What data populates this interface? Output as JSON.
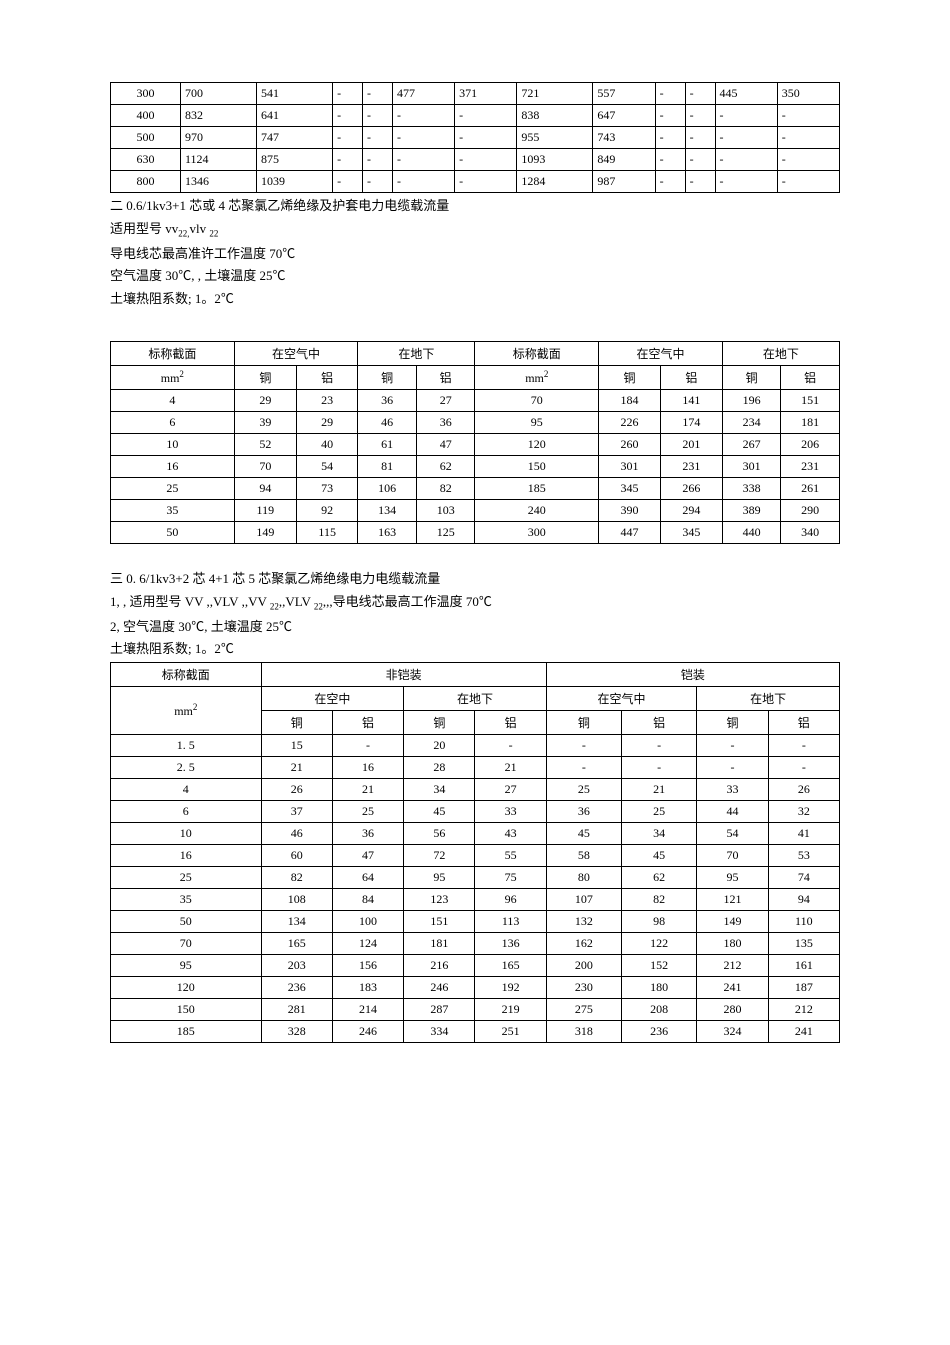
{
  "table1": {
    "rows": [
      [
        "300",
        "700",
        "541",
        "-",
        "-",
        "477",
        "371",
        "721",
        "557",
        "-",
        "-",
        "445",
        "350"
      ],
      [
        "400",
        "832",
        "641",
        "-",
        "-",
        "-",
        "-",
        "838",
        "647",
        "-",
        "-",
        "-",
        "-"
      ],
      [
        "500",
        "970",
        "747",
        "-",
        "-",
        "-",
        "-",
        "955",
        "743",
        "-",
        "-",
        "-",
        "-"
      ],
      [
        "630",
        "1124",
        "875",
        "-",
        "-",
        "-",
        "-",
        "1093",
        "849",
        "-",
        "-",
        "-",
        "-"
      ],
      [
        "800",
        "1346",
        "1039",
        "-",
        "-",
        "-",
        "-",
        "1284",
        "987",
        "-",
        "-",
        "-",
        "-"
      ]
    ],
    "col_widths": [
      "70px",
      "46px",
      "46px",
      "46px",
      "46px",
      "46px",
      "46px",
      "46px",
      "46px",
      "46px",
      "46px",
      "46px",
      "46px"
    ]
  },
  "section2": {
    "title": "二  0.6/1kv3+1 芯或  4 芯聚氯乙烯绝缘及护套电力电缆载流量",
    "line1_a": "适用型号  vv",
    "line1_sub1": "22,",
    "line1_b": "vlv ",
    "line1_sub2": "22",
    "line2": "导电线芯最高准许工作温度    70℃",
    "line3": "空气温度  30℃, ,  土壤温度  25℃",
    "line4": "土壤热阻系数;   1。2℃"
  },
  "table2": {
    "h1": [
      "标称截面",
      "在空气中",
      "在地下",
      "标称截面",
      "在空气中",
      "在地下"
    ],
    "h2_unit_a": "mm",
    "h2_sup": "2",
    "h2": [
      "铜",
      "铝",
      "铜",
      "铝",
      "",
      "铜",
      "铝",
      "铜",
      "铝"
    ],
    "rows": [
      [
        "4",
        "29",
        "23",
        "36",
        "27",
        "70",
        "184",
        "141",
        "196",
        "151"
      ],
      [
        "6",
        "39",
        "29",
        "46",
        "36",
        "95",
        "226",
        "174",
        "234",
        "181"
      ],
      [
        "10",
        "52",
        "40",
        "61",
        "47",
        "120",
        "260",
        "201",
        "267",
        "206"
      ],
      [
        "16",
        "70",
        "54",
        "81",
        "62",
        "150",
        "301",
        "231",
        "301",
        "231"
      ],
      [
        "25",
        "94",
        "73",
        "106",
        "82",
        "185",
        "345",
        "266",
        "338",
        "261"
      ],
      [
        "35",
        "119",
        "92",
        "134",
        "103",
        "240",
        "390",
        "294",
        "389",
        "290"
      ],
      [
        "50",
        "149",
        "115",
        "163",
        "125",
        "300",
        "447",
        "345",
        "440",
        "340"
      ]
    ]
  },
  "section3": {
    "title": "三  0.  6/1kv3+2 芯 4+1 芯 5 芯聚氯乙烯绝缘电力电缆载流量",
    "line1_a": "1, ,  适用型号   VV ,,VLV ,,VV ",
    "line1_sub1": "22",
    "line1_b": ",,VLV ",
    "line1_sub2": "22",
    "line1_c": ",,,导电线芯最高工作温度     70℃",
    "line2": "2,  空气温度   30℃,  土壤温度   25℃",
    "line3": "土壤热阻系数;    1。2℃"
  },
  "table3": {
    "h1": [
      "标称截面",
      "非铠装",
      "铠装"
    ],
    "h2_unit_a": "mm",
    "h2_sup": "2",
    "h2": [
      "在空中",
      "在地下",
      "在空气中",
      "在地下"
    ],
    "h3": [
      "铜",
      "铝",
      "铜",
      "铝",
      "铜",
      "铝",
      "铜",
      "铝"
    ],
    "rows": [
      [
        "1.  5",
        "15",
        "-",
        "20",
        "-",
        "-",
        "-",
        "-",
        "-"
      ],
      [
        "2.  5",
        "21",
        "16",
        "28",
        "21",
        "-",
        "-",
        "-",
        "-"
      ],
      [
        "4",
        "26",
        "21",
        "34",
        "27",
        "25",
        "21",
        "33",
        "26"
      ],
      [
        "6",
        "37",
        "25",
        "45",
        "33",
        "36",
        "25",
        "44",
        "32"
      ],
      [
        "10",
        "46",
        "36",
        "56",
        "43",
        "45",
        "34",
        "54",
        "41"
      ],
      [
        "16",
        "60",
        "47",
        "72",
        "55",
        "58",
        "45",
        "70",
        "53"
      ],
      [
        "25",
        "82",
        "64",
        "95",
        "75",
        "80",
        "62",
        "95",
        "74"
      ],
      [
        "35",
        "108",
        "84",
        "123",
        "96",
        "107",
        "82",
        "121",
        "94"
      ],
      [
        "50",
        "134",
        "100",
        "151",
        "113",
        "132",
        "98",
        "149",
        "110"
      ],
      [
        "70",
        "165",
        "124",
        "181",
        "136",
        "162",
        "122",
        "180",
        "135"
      ],
      [
        "95",
        "203",
        "156",
        "216",
        "165",
        "200",
        "152",
        "212",
        "161"
      ],
      [
        "120",
        "236",
        "183",
        "246",
        "192",
        "230",
        "180",
        "241",
        "187"
      ],
      [
        "150",
        "281",
        "214",
        "287",
        "219",
        "275",
        "208",
        "280",
        "212"
      ],
      [
        "185",
        "328",
        "246",
        "334",
        "251",
        "318",
        "236",
        "324",
        "241"
      ]
    ]
  }
}
